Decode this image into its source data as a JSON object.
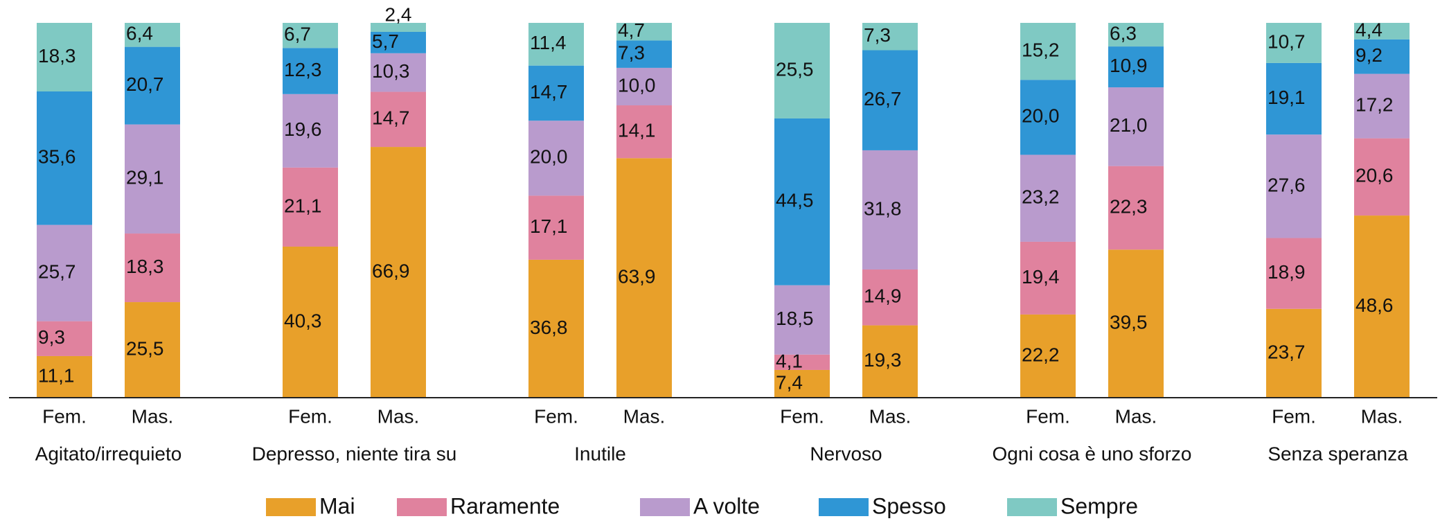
{
  "chart_data": {
    "type": "stacked_bar",
    "categories": [
      "Fem.",
      "Mas.",
      "Fem.",
      "Mas.",
      "Fem.",
      "Mas.",
      "Fem.",
      "Mas.",
      "Fem.",
      "Mas.",
      "Fem.",
      "Mas."
    ],
    "groups": [
      "Agitato/irrequieto",
      "Depresso, niente tira su",
      "Inutile",
      "Nervoso",
      "Ogni cosa è uno sforzo",
      "Senza speranza"
    ],
    "ylim": [
      0,
      100
    ],
    "legend": "bottom",
    "series": [
      {
        "name": "Mai",
        "color": "#e8a02a",
        "values": [
          11.1,
          25.5,
          40.3,
          66.9,
          36.8,
          63.9,
          7.4,
          19.3,
          22.2,
          39.5,
          23.7,
          48.6
        ],
        "value_labels": [
          "11,1",
          "25,5",
          "40,3",
          "66,9",
          "36,8",
          "63,9",
          "7,4",
          "19,3",
          "22,2",
          "39,5",
          "23,7",
          "48,6"
        ]
      },
      {
        "name": "Raramente",
        "color": "#e0829e",
        "values": [
          9.3,
          18.3,
          21.1,
          14.7,
          17.1,
          14.1,
          4.1,
          14.9,
          19.4,
          22.3,
          18.9,
          20.6
        ],
        "value_labels": [
          "9,3",
          "18,3",
          "21,1",
          "14,7",
          "17,1",
          "14,1",
          "4,1",
          "14,9",
          "19,4",
          "22,3",
          "18,9",
          "20,6"
        ]
      },
      {
        "name": "A volte",
        "color": "#b99bcd",
        "values": [
          25.7,
          29.1,
          19.6,
          10.3,
          20.0,
          10.0,
          18.5,
          31.8,
          23.2,
          21.0,
          27.6,
          17.2
        ],
        "value_labels": [
          "25,7",
          "29,1",
          "19,6",
          "10,3",
          "20,0",
          "10,0",
          "18,5",
          "31,8",
          "23,2",
          "21,0",
          "27,6",
          "17,2"
        ]
      },
      {
        "name": "Spesso",
        "color": "#2f96d5",
        "values": [
          35.6,
          20.7,
          12.3,
          5.7,
          14.7,
          7.3,
          44.5,
          26.7,
          20.0,
          10.9,
          19.1,
          9.2
        ],
        "value_labels": [
          "35,6",
          "20,7",
          "12,3",
          "5,7",
          "14,7",
          "7,3",
          "44,5",
          "26,7",
          "20,0",
          "10,9",
          "19,1",
          "9,2"
        ]
      },
      {
        "name": "Sempre",
        "color": "#7fc9c3",
        "values": [
          18.3,
          6.4,
          6.7,
          2.4,
          11.4,
          4.7,
          25.5,
          7.3,
          15.2,
          6.3,
          10.7,
          4.4
        ],
        "value_labels": [
          "18,3",
          "6,4",
          "6,7",
          "2,4",
          "11,4",
          "4,7",
          "25,5",
          "7,3",
          "15,2",
          "6,3",
          "10,7",
          "4,4"
        ]
      }
    ]
  }
}
